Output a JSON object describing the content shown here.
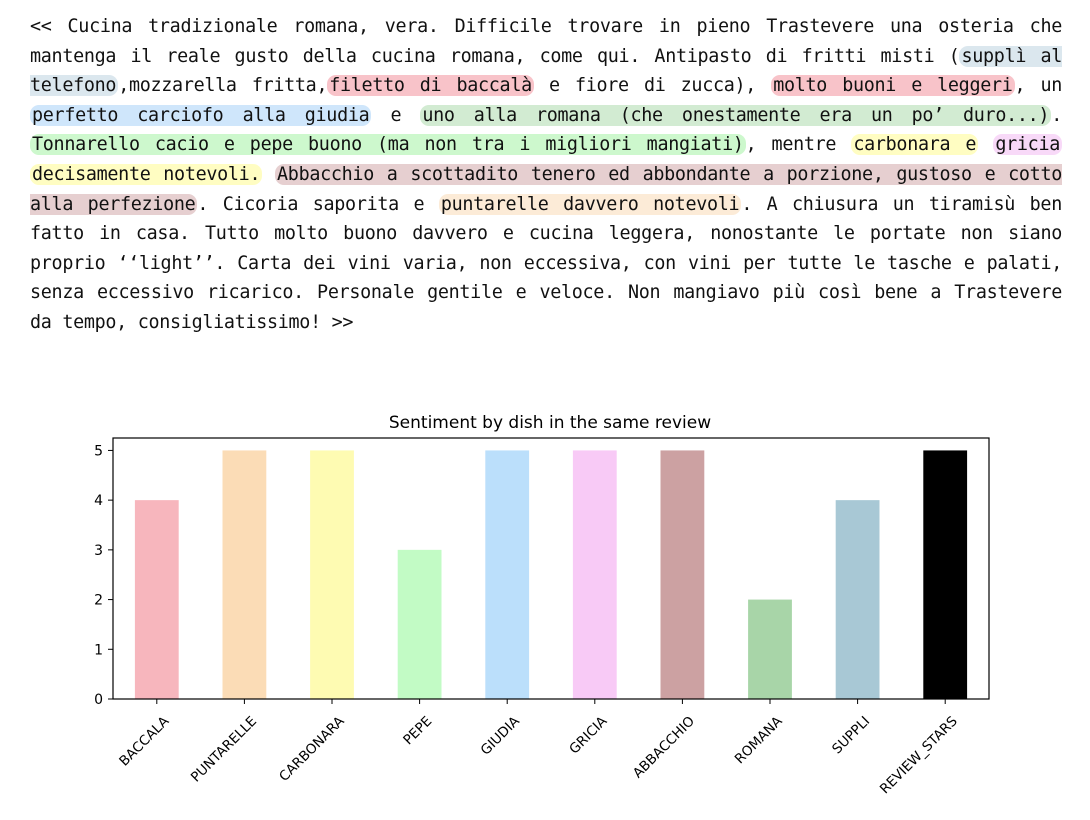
{
  "review": {
    "segments": [
      {
        "text": "<< Cucina tradizionale romana, vera. Difficile trovare in pieno Trastevere una osteria che mantenga il reale gusto della cucina romana, come qui. Antipasto di fritti misti ("
      },
      {
        "text": "supplì al telefono",
        "color": "#dbe7ee"
      },
      {
        "text": ",mozzarella fritta,"
      },
      {
        "text": "filetto di baccalà",
        "color": "#f8c3c9"
      },
      {
        "text": " e fiore di zucca), "
      },
      {
        "text": "molto buoni e leggeri",
        "color": "#f8c3c9"
      },
      {
        "text": ", un "
      },
      {
        "text": "perfetto carciofo alla giudia",
        "color": "#cfe6fb"
      },
      {
        "text": " e "
      },
      {
        "text": "uno alla romana (che onestamente era un po’ duro...)",
        "color": "#d2ebd2"
      },
      {
        "text": ". "
      },
      {
        "text": "Tonnarello cacio e pepe buono (ma non tra i migliori mangiati)",
        "color": "#cdf8cd"
      },
      {
        "text": ", mentre "
      },
      {
        "text": "carbonara e",
        "color": "#fffdc2"
      },
      {
        "text": " "
      },
      {
        "text": "gricia",
        "color": "#f8d9f8"
      },
      {
        "text": " "
      },
      {
        "text": "decisamente notevoli.",
        "color": "#fffdc2"
      },
      {
        "text": " "
      },
      {
        "text": "Abbacchio a scottadito tenero ed abbondante a porzione, gustoso e cotto alla perfezione",
        "color": "#e6cfd0"
      },
      {
        "text": ". Cicoria saporita e "
      },
      {
        "text": "puntarelle davvero notevoli",
        "color": "#fcebd7"
      },
      {
        "text": ". A chiusura un tiramisù ben fatto in casa. Tutto molto buono davvero e cucina leggera, nonostante le portate non siano proprio ‘‘light’’. Carta dei vini varia, non eccessiva, con vini per tutte le tasche e palati, senza eccessivo ricarico. Personale gentile e veloce. Non mangiavo più così bene a Trastevere da tempo, consigliatissimo! >>"
      }
    ]
  },
  "chart_data": {
    "type": "bar",
    "title": "Sentiment by dish in the same review",
    "xlabel": "",
    "ylabel": "",
    "categories": [
      "BACCALA",
      "PUNTARELLE",
      "CARBONARA",
      "PEPE",
      "GIUDIA",
      "GRICIA",
      "ABBACCHIO",
      "ROMANA",
      "SUPPLI",
      "REVIEW_STARS"
    ],
    "values": [
      4,
      5,
      5,
      3,
      5,
      5,
      5,
      2,
      4,
      5
    ],
    "colors": [
      "#f7b6bd",
      "#fbdcb6",
      "#fefbb2",
      "#c2fbc5",
      "#bbdffb",
      "#f8caf6",
      "#cca1a2",
      "#a8d5a8",
      "#a8c8d5",
      "#000000"
    ],
    "ylim": [
      0,
      5.25
    ],
    "yticks": [
      0,
      1,
      2,
      3,
      4,
      5
    ],
    "grid": false,
    "legend": "none"
  }
}
